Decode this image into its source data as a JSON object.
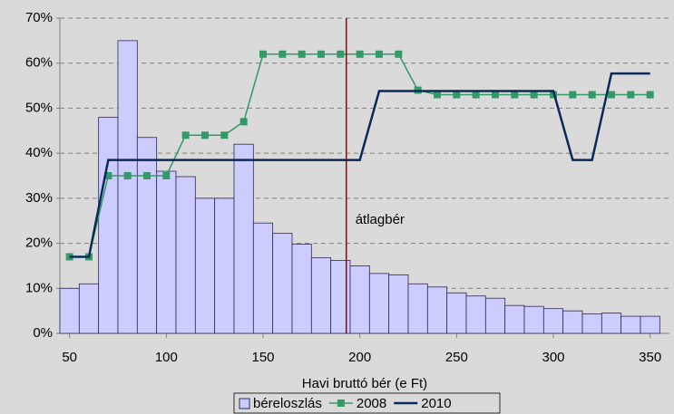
{
  "chart_data": {
    "type": "histogram-line",
    "xlabel": "Havi bruttó bér (e Ft)",
    "bins": [
      45,
      55,
      65,
      75,
      85,
      95,
      105,
      115,
      125,
      135,
      145,
      155,
      165,
      175,
      185,
      195,
      205,
      215,
      225,
      235,
      245,
      255,
      265,
      275,
      285,
      295,
      305,
      315,
      325,
      335,
      345,
      355
    ],
    "x": [
      50,
      60,
      70,
      80,
      90,
      100,
      110,
      120,
      130,
      140,
      150,
      160,
      170,
      180,
      190,
      200,
      210,
      220,
      230,
      240,
      250,
      260,
      270,
      280,
      290,
      300,
      310,
      320,
      330,
      340,
      350
    ],
    "series": [
      {
        "name": "béreloszlás",
        "kind": "bar",
        "color": "#ccccff",
        "values": [
          10,
          11,
          48,
          65,
          43.5,
          36,
          34.8,
          30,
          30,
          42,
          24.5,
          22.2,
          19.8,
          16.8,
          16.2,
          15,
          13.3,
          13,
          11,
          10.3,
          9,
          8.3,
          7.8,
          6.2,
          6,
          5.5,
          5,
          4.3,
          4.5,
          3.8,
          3.8
        ]
      },
      {
        "name": "2008",
        "kind": "line-marker",
        "color": "#339966",
        "values": [
          17,
          17,
          35,
          35,
          35,
          35,
          44,
          44,
          44,
          47,
          62,
          62,
          62,
          62,
          62,
          62,
          62,
          62,
          54,
          53,
          53,
          53,
          53,
          53,
          53,
          53,
          53,
          53,
          53,
          53,
          53
        ]
      },
      {
        "name": "2010",
        "kind": "step-line",
        "color": "#0b2a59",
        "values": [
          17,
          17,
          38.5,
          38.5,
          38.5,
          38.5,
          38.5,
          38.5,
          38.5,
          38.5,
          38.5,
          38.5,
          38.5,
          38.5,
          38.5,
          38.5,
          53.8,
          53.8,
          53.8,
          53.8,
          53.8,
          53.8,
          53.8,
          53.8,
          53.8,
          53.8,
          38.5,
          38.5,
          57.7,
          57.7,
          57.7
        ]
      }
    ],
    "mean_line": {
      "x": 193,
      "label": "átlagbér",
      "color": "#a00000"
    },
    "xlim": [
      45,
      360
    ],
    "xticks": [
      50,
      100,
      150,
      200,
      250,
      300,
      350
    ],
    "ylim": [
      0,
      70
    ],
    "yticks": [
      {
        "value": 0,
        "label": "0%"
      },
      {
        "value": 10,
        "label": "10%"
      },
      {
        "value": 20,
        "label": "20%"
      },
      {
        "value": 30,
        "label": "30%"
      },
      {
        "value": 40,
        "label": "40%"
      },
      {
        "value": 50,
        "label": "50%"
      },
      {
        "value": 60,
        "label": "60%"
      },
      {
        "value": 70,
        "label": "70%"
      }
    ],
    "grid": true,
    "legend": "bottom"
  }
}
